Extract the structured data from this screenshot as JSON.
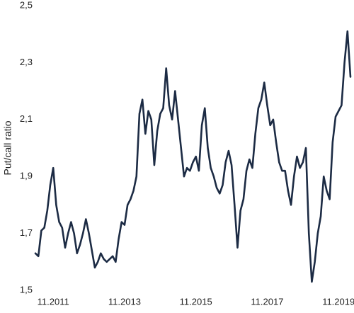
{
  "chart_data": {
    "type": "line",
    "y_label": "Put/call ratio",
    "x": [
      "2011-05",
      "2011-06",
      "2011-07",
      "2011-08",
      "2011-09",
      "2011-10",
      "2011-11",
      "2011-12",
      "2012-01",
      "2012-02",
      "2012-03",
      "2012-04",
      "2012-05",
      "2012-06",
      "2012-07",
      "2012-08",
      "2012-09",
      "2012-10",
      "2012-11",
      "2012-12",
      "2013-01",
      "2013-02",
      "2013-03",
      "2013-04",
      "2013-05",
      "2013-06",
      "2013-07",
      "2013-08",
      "2013-09",
      "2013-10",
      "2013-11",
      "2013-12",
      "2014-01",
      "2014-02",
      "2014-03",
      "2014-04",
      "2014-05",
      "2014-06",
      "2014-07",
      "2014-08",
      "2014-09",
      "2014-10",
      "2014-11",
      "2014-12",
      "2015-01",
      "2015-02",
      "2015-03",
      "2015-04",
      "2015-05",
      "2015-06",
      "2015-07",
      "2015-08",
      "2015-09",
      "2015-10",
      "2015-11",
      "2015-12",
      "2016-01",
      "2016-02",
      "2016-03",
      "2016-04",
      "2016-05",
      "2016-06",
      "2016-07",
      "2016-08",
      "2016-09",
      "2016-10",
      "2016-11",
      "2016-12",
      "2017-01",
      "2017-02",
      "2017-03",
      "2017-04",
      "2017-05",
      "2017-06",
      "2017-07",
      "2017-08",
      "2017-09",
      "2017-10",
      "2017-11",
      "2017-12",
      "2018-01",
      "2018-02",
      "2018-03",
      "2018-04",
      "2018-05",
      "2018-06",
      "2018-07",
      "2018-08",
      "2018-09",
      "2018-10",
      "2018-11",
      "2018-12",
      "2019-01",
      "2019-02",
      "2019-03",
      "2019-04",
      "2019-05",
      "2019-06",
      "2019-07",
      "2019-08",
      "2019-09",
      "2019-10",
      "2019-11",
      "2019-12",
      "2020-01",
      "2020-02",
      "2020-03"
    ],
    "series": [
      {
        "name": "Put/call ratio",
        "color": "#1c2b44",
        "values": [
          1.63,
          1.62,
          1.71,
          1.72,
          1.78,
          1.87,
          1.93,
          1.8,
          1.74,
          1.72,
          1.65,
          1.7,
          1.74,
          1.7,
          1.63,
          1.66,
          1.7,
          1.75,
          1.7,
          1.64,
          1.58,
          1.6,
          1.63,
          1.61,
          1.6,
          1.61,
          1.62,
          1.6,
          1.68,
          1.74,
          1.73,
          1.8,
          1.82,
          1.85,
          1.9,
          2.12,
          2.17,
          2.05,
          2.13,
          2.1,
          1.94,
          2.06,
          2.12,
          2.14,
          2.28,
          2.15,
          2.1,
          2.2,
          2.1,
          2.0,
          1.9,
          1.93,
          1.92,
          1.95,
          1.97,
          1.92,
          2.08,
          2.14,
          2.0,
          1.93,
          1.9,
          1.86,
          1.84,
          1.87,
          1.95,
          1.99,
          1.94,
          1.8,
          1.65,
          1.78,
          1.82,
          1.92,
          1.96,
          1.93,
          2.05,
          2.14,
          2.17,
          2.23,
          2.15,
          2.08,
          2.1,
          2.02,
          1.95,
          1.92,
          1.92,
          1.85,
          1.8,
          1.9,
          1.97,
          1.93,
          1.95,
          2.0,
          1.7,
          1.53,
          1.6,
          1.7,
          1.76,
          1.9,
          1.85,
          1.82,
          2.02,
          2.11,
          2.13,
          2.15,
          2.3,
          2.41,
          2.25
        ]
      }
    ],
    "xticks": [
      {
        "value": "2011-11",
        "label": "11.2011"
      },
      {
        "value": "2013-11",
        "label": "11.2013"
      },
      {
        "value": "2015-11",
        "label": "11.2015"
      },
      {
        "value": "2017-11",
        "label": "11.2017"
      },
      {
        "value": "2019-11",
        "label": "11.2019"
      }
    ],
    "ylim": [
      1.5,
      2.5
    ],
    "yticks": [
      {
        "value": 1.5,
        "label": "1,5"
      },
      {
        "value": 1.7,
        "label": "1,7"
      },
      {
        "value": 1.9,
        "label": "1,9"
      },
      {
        "value": 2.1,
        "label": "2,1"
      },
      {
        "value": 2.3,
        "label": "2,3"
      },
      {
        "value": 2.5,
        "label": "2,5"
      }
    ],
    "grid": false
  }
}
